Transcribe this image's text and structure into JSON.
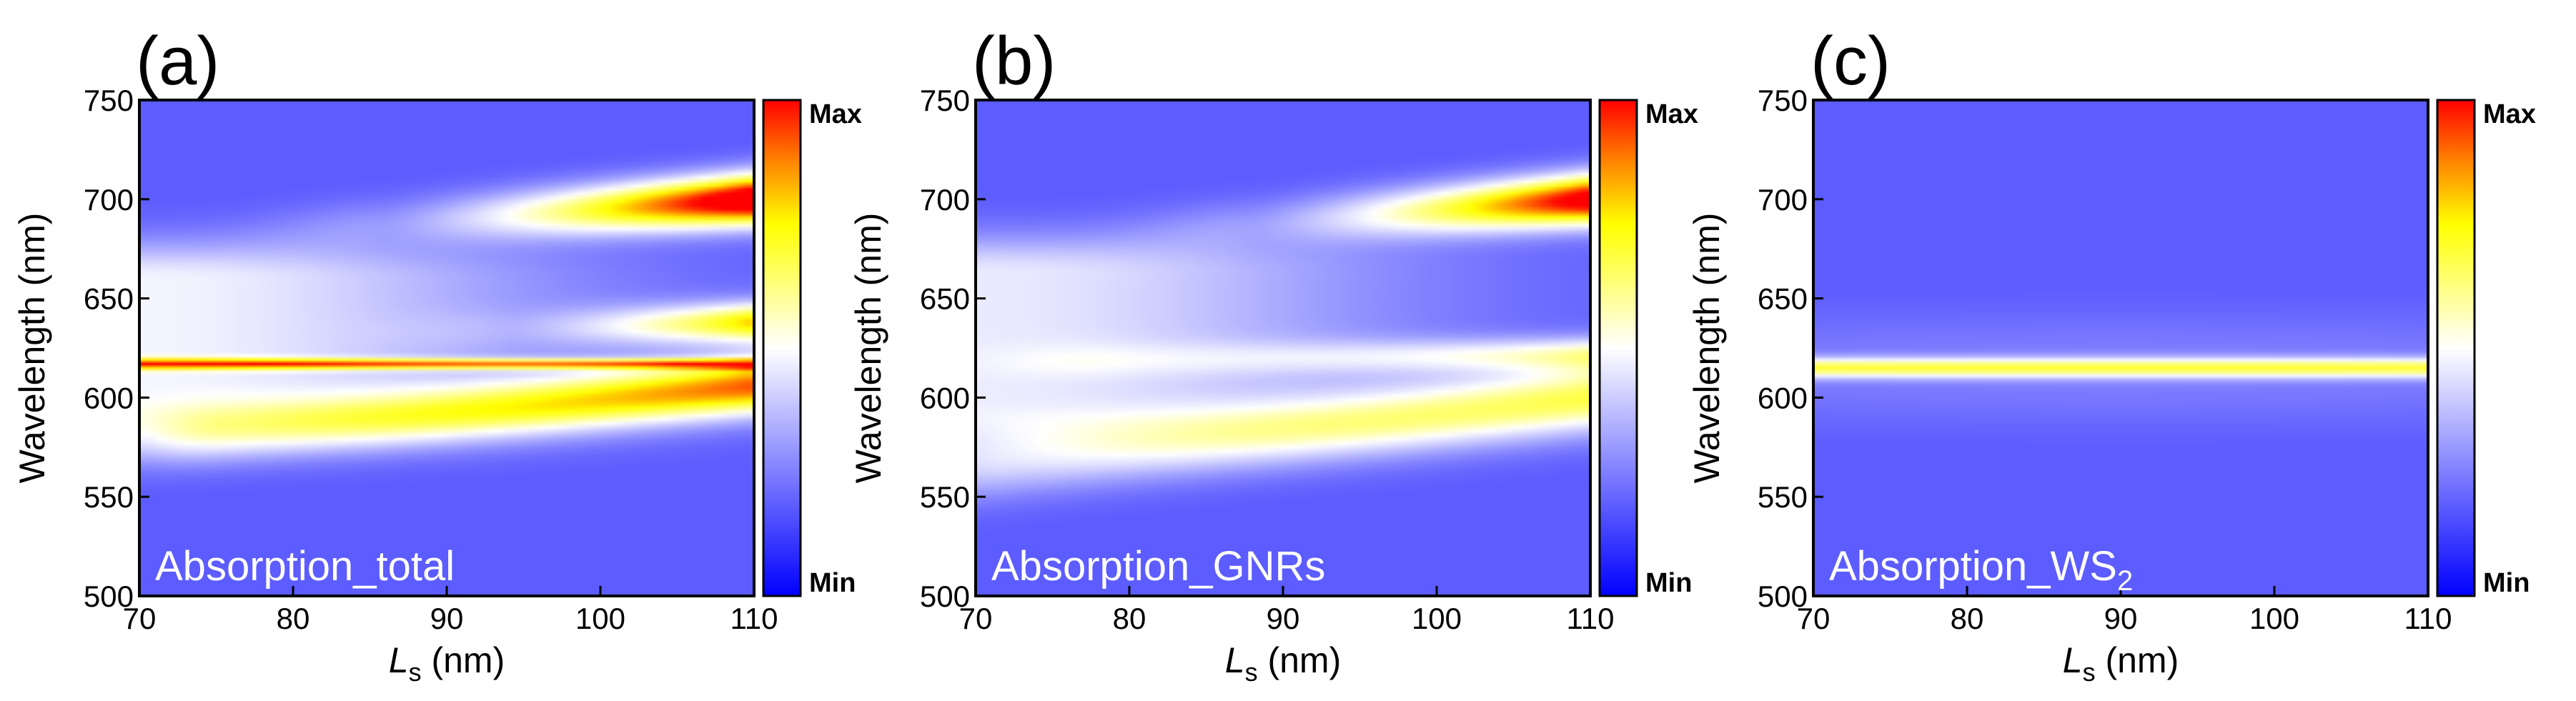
{
  "chart_data": [
    {
      "type": "heatmap",
      "panel_label": "(a)",
      "inner_label": "Absorption_total",
      "inner_label_subscript": "",
      "xlabel": "L",
      "xlabel_subscript": "s",
      "xlabel_unit": " (nm)",
      "ylabel": "Wavelength (nm)",
      "xlim": [
        70,
        110
      ],
      "ylim": [
        500,
        750
      ],
      "xticks": [
        "70",
        "80",
        "90",
        "100",
        "110"
      ],
      "yticks": [
        "500",
        "550",
        "600",
        "650",
        "700",
        "750"
      ],
      "colorbar": {
        "max_label": "Max",
        "min_label": "Min"
      },
      "features": [
        {
          "kind": "band",
          "wl_start": 575,
          "wl_end": 680,
          "ls_center": 70,
          "sigma": 18,
          "amp": 0.3
        },
        {
          "kind": "curve",
          "wl_start": 680,
          "wl_end": 700,
          "sigma": 9,
          "amp_start": 0.1,
          "amp_end": 1.0,
          "onset": 86
        },
        {
          "kind": "curve",
          "wl_start": 630,
          "wl_end": 638,
          "sigma": 7,
          "amp_start": 0.05,
          "amp_end": 0.6,
          "onset": 94
        },
        {
          "kind": "curve",
          "wl_start": 578,
          "wl_end": 606,
          "sigma": 10,
          "amp_start": 0.25,
          "amp_end": 0.72,
          "onset": 76
        },
        {
          "kind": "line",
          "wl_center": 617,
          "sigma": 1.8,
          "amp": 0.55
        }
      ]
    },
    {
      "type": "heatmap",
      "panel_label": "(b)",
      "inner_label": "Absorption_GNRs",
      "inner_label_subscript": "",
      "xlabel": "L",
      "xlabel_subscript": "s",
      "xlabel_unit": " (nm)",
      "ylabel": "Wavelength (nm)",
      "xlim": [
        70,
        110
      ],
      "ylim": [
        500,
        750
      ],
      "xticks": [
        "70",
        "80",
        "90",
        "100",
        "110"
      ],
      "yticks": [
        "500",
        "550",
        "600",
        "650",
        "700",
        "750"
      ],
      "colorbar": {
        "max_label": "Max",
        "min_label": "Min"
      },
      "features": [
        {
          "kind": "band",
          "wl_start": 570,
          "wl_end": 685,
          "ls_center": 70,
          "sigma": 18,
          "amp": 0.28
        },
        {
          "kind": "curve",
          "wl_start": 678,
          "wl_end": 700,
          "sigma": 9,
          "amp_start": 0.1,
          "amp_end": 0.92,
          "onset": 88
        },
        {
          "kind": "curve",
          "wl_start": 618,
          "wl_end": 622,
          "sigma": 6,
          "amp_start": 0.08,
          "amp_end": 0.34,
          "onset": 80
        },
        {
          "kind": "curve",
          "wl_start": 565,
          "wl_end": 600,
          "sigma": 12,
          "amp_start": 0.22,
          "amp_end": 0.48,
          "onset": 72
        }
      ]
    },
    {
      "type": "heatmap",
      "panel_label": "(c)",
      "inner_label": "Absorption_WS",
      "inner_label_subscript": "2",
      "xlabel": "L",
      "xlabel_subscript": "s",
      "xlabel_unit": " (nm)",
      "ylabel": "Wavelength (nm)",
      "xlim": [
        70,
        110
      ],
      "ylim": [
        500,
        750
      ],
      "xticks": [
        "70",
        "80",
        "90",
        "100",
        "110"
      ],
      "yticks": [
        "500",
        "550",
        "600",
        "650",
        "700",
        "750"
      ],
      "colorbar": {
        "max_label": "Max",
        "min_label": "Min"
      },
      "features": [
        {
          "kind": "line",
          "wl_center": 615,
          "sigma": 3.5,
          "amp": 0.46
        },
        {
          "kind": "band",
          "wl_start": 600,
          "wl_end": 630,
          "ls_center": 90,
          "sigma": 40,
          "amp": 0.06
        }
      ]
    }
  ]
}
